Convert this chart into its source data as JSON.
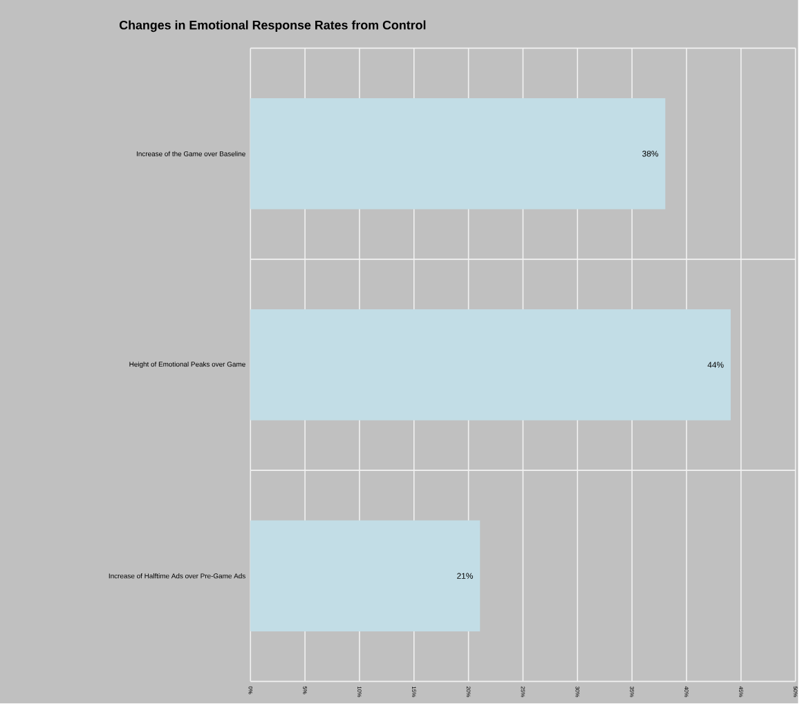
{
  "chart_data": {
    "type": "bar",
    "orientation": "horizontal",
    "title": "Changes in Emotional Response Rates from Control",
    "categories": [
      "Increase of the Game over Baseline",
      "Height of Emotional Peaks over  Game",
      "Increase of Halftime Ads over Pre-Game Ads"
    ],
    "values": [
      38,
      44,
      21
    ],
    "value_labels": [
      "38%",
      "44%",
      "21%"
    ],
    "color": "#c2dde6",
    "xlim": [
      0,
      50
    ],
    "xticks": [
      {
        "value": 0,
        "label": "0%"
      },
      {
        "value": 5,
        "label": "5%"
      },
      {
        "value": 10,
        "label": "10%"
      },
      {
        "value": 15,
        "label": "15%"
      },
      {
        "value": 20,
        "label": "20%"
      },
      {
        "value": 25,
        "label": "25%"
      },
      {
        "value": 30,
        "label": "30%"
      },
      {
        "value": 35,
        "label": "35%"
      },
      {
        "value": 40,
        "label": "40%"
      },
      {
        "value": 45,
        "label": "45%"
      },
      {
        "value": 50,
        "label": "50%"
      }
    ],
    "grid": true
  }
}
